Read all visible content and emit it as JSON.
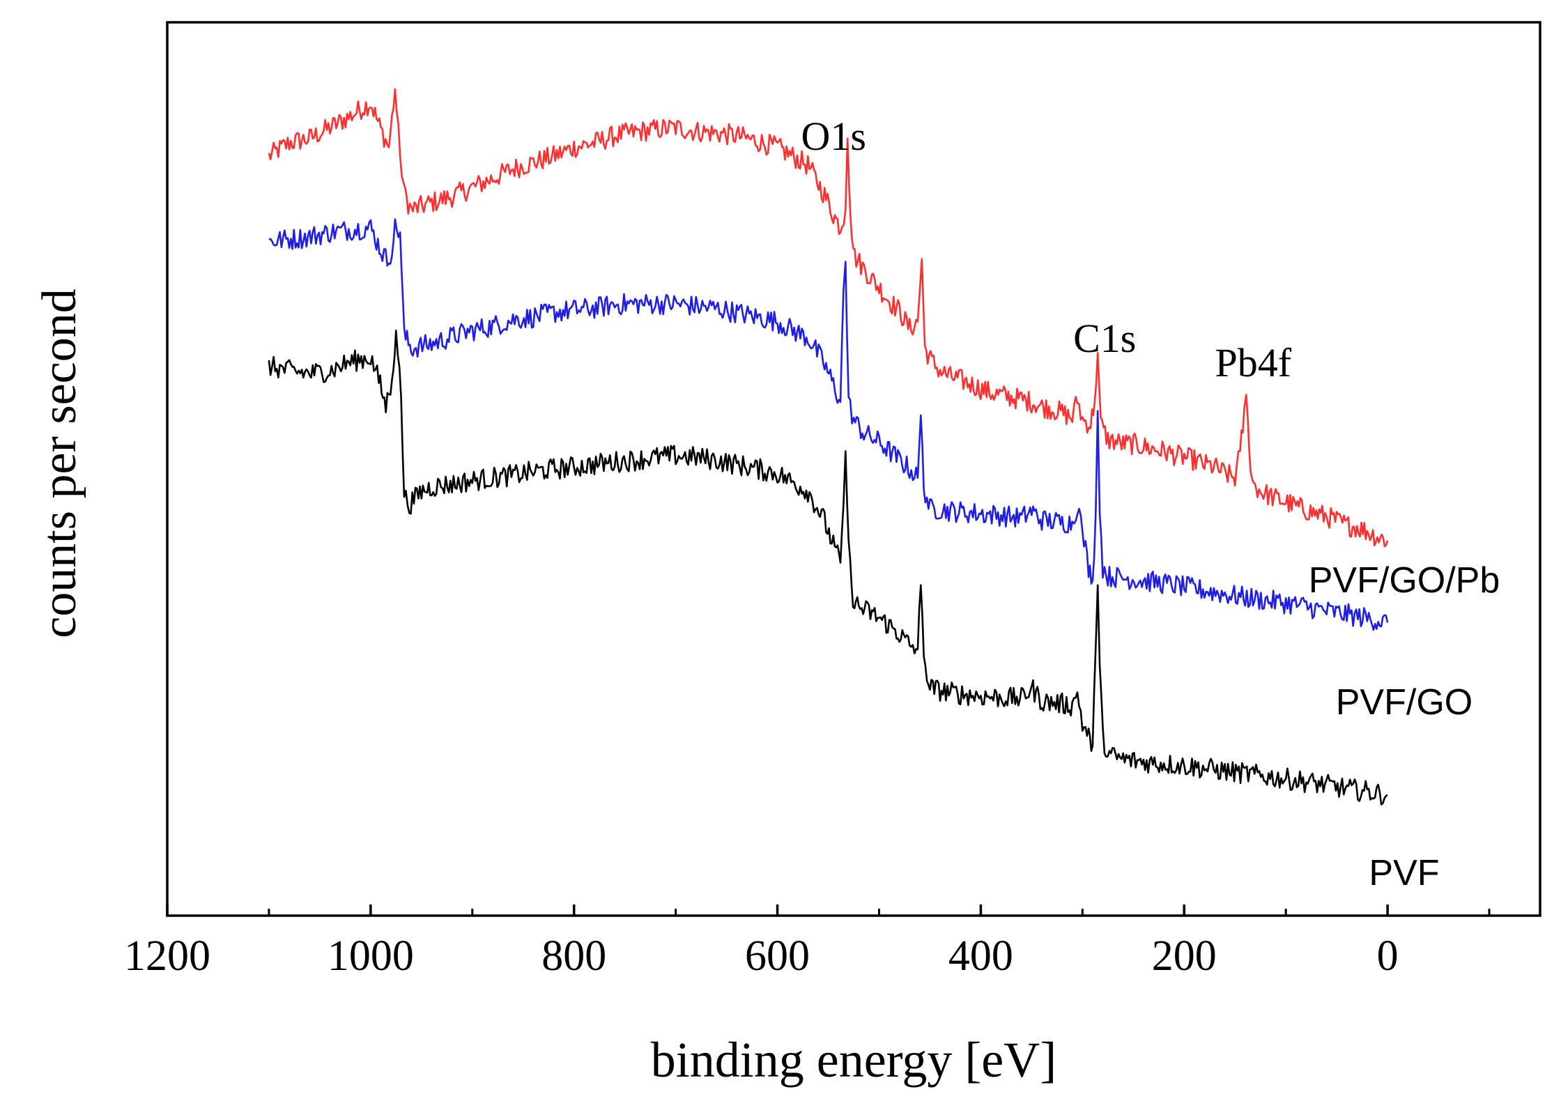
{
  "chart_data": {
    "type": "line",
    "title": "",
    "xlabel": "binding energy [eV]",
    "ylabel": "counts per second",
    "xlim": [
      1200,
      -150
    ],
    "x_reversed": true,
    "x_ticks": [
      1200,
      1000,
      800,
      600,
      400,
      200,
      0
    ],
    "ylim": [
      0,
      100
    ],
    "y_ticks_shown": false,
    "grid": false,
    "legend": "none",
    "peak_annotations": [
      {
        "label": "O1s",
        "x": 531
      },
      {
        "label": "C1s",
        "x": 285
      },
      {
        "label": "Pb4f",
        "x": 139
      }
    ],
    "series": [
      {
        "name": "PVF/GO/Pb",
        "color": "#ff3030",
        "points": [
          [
            1100,
            85
          ],
          [
            1080,
            86.5
          ],
          [
            1060,
            87
          ],
          [
            1040,
            88.2
          ],
          [
            1020,
            89.5
          ],
          [
            1000,
            91
          ],
          [
            990,
            88
          ],
          [
            982,
            86
          ],
          [
            976,
            92.5
          ],
          [
            971,
            85
          ],
          [
            966,
            80.5
          ],
          [
            960,
            79
          ],
          [
            940,
            79.8
          ],
          [
            920,
            80.5
          ],
          [
            900,
            81.5
          ],
          [
            880,
            82.5
          ],
          [
            860,
            83.6
          ],
          [
            840,
            84.3
          ],
          [
            820,
            85
          ],
          [
            800,
            86
          ],
          [
            780,
            86.5
          ],
          [
            760,
            87.3
          ],
          [
            740,
            87.7
          ],
          [
            720,
            88
          ],
          [
            700,
            88.2
          ],
          [
            680,
            87.8
          ],
          [
            660,
            87.6
          ],
          [
            640,
            87.3
          ],
          [
            620,
            86.7
          ],
          [
            600,
            86
          ],
          [
            585,
            85
          ],
          [
            570,
            84
          ],
          [
            555,
            81
          ],
          [
            545,
            78.5
          ],
          [
            538,
            77
          ],
          [
            533,
            79
          ],
          [
            531,
            87
          ],
          [
            528,
            78
          ],
          [
            524,
            73.8
          ],
          [
            510,
            71.7
          ],
          [
            500,
            70.3
          ],
          [
            490,
            68.8
          ],
          [
            480,
            67.7
          ],
          [
            470,
            65.7
          ],
          [
            462,
            66.5
          ],
          [
            458,
            73.5
          ],
          [
            455,
            63.5
          ],
          [
            448,
            62
          ],
          [
            440,
            61
          ],
          [
            430,
            60.3
          ],
          [
            420,
            60
          ],
          [
            410,
            59.5
          ],
          [
            400,
            59
          ],
          [
            390,
            58.5
          ],
          [
            380,
            58.3
          ],
          [
            370,
            58
          ],
          [
            360,
            57.8
          ],
          [
            350,
            57.5
          ],
          [
            340,
            57
          ],
          [
            330,
            56.7
          ],
          [
            320,
            56.3
          ],
          [
            310,
            55.7
          ],
          [
            305,
            57.8
          ],
          [
            300,
            55.5
          ],
          [
            292,
            55
          ],
          [
            288,
            57.5
          ],
          [
            285,
            63
          ],
          [
            282,
            55
          ],
          [
            275,
            53.3
          ],
          [
            260,
            52.8
          ],
          [
            250,
            52.8
          ],
          [
            240,
            52.5
          ],
          [
            230,
            52.2
          ],
          [
            220,
            52
          ],
          [
            210,
            51.6
          ],
          [
            200,
            51.3
          ],
          [
            190,
            51
          ],
          [
            180,
            50.5
          ],
          [
            170,
            50.2
          ],
          [
            160,
            49.5
          ],
          [
            150,
            49
          ],
          [
            145,
            52
          ],
          [
            141,
            56
          ],
          [
            139,
            58.3
          ],
          [
            136,
            52
          ],
          [
            132,
            48.3
          ],
          [
            125,
            47.5
          ],
          [
            110,
            46.7
          ],
          [
            100,
            46.3
          ],
          [
            90,
            45.8
          ],
          [
            80,
            45.4
          ],
          [
            70,
            45
          ],
          [
            60,
            44.7
          ],
          [
            50,
            44.2
          ],
          [
            40,
            43.7
          ],
          [
            30,
            43.5
          ],
          [
            20,
            43
          ],
          [
            10,
            42.4
          ],
          [
            0,
            42
          ]
        ]
      },
      {
        "name": "PVF/GO",
        "color": "#1e1ee6",
        "points": [
          [
            1100,
            75.5
          ],
          [
            1080,
            75.7
          ],
          [
            1060,
            76
          ],
          [
            1040,
            76.5
          ],
          [
            1020,
            76.8
          ],
          [
            1000,
            77
          ],
          [
            990,
            74.5
          ],
          [
            982,
            73
          ],
          [
            976,
            77
          ],
          [
            971,
            76.5
          ],
          [
            967,
            65
          ],
          [
            960,
            63.5
          ],
          [
            940,
            64
          ],
          [
            920,
            64.8
          ],
          [
            900,
            65.5
          ],
          [
            880,
            66
          ],
          [
            860,
            66.7
          ],
          [
            840,
            67
          ],
          [
            820,
            67.5
          ],
          [
            800,
            67.8
          ],
          [
            780,
            68
          ],
          [
            760,
            68.4
          ],
          [
            740,
            68.5
          ],
          [
            720,
            68.5
          ],
          [
            700,
            68.5
          ],
          [
            680,
            68.2
          ],
          [
            660,
            68
          ],
          [
            640,
            67.5
          ],
          [
            620,
            67
          ],
          [
            600,
            66.5
          ],
          [
            585,
            65.5
          ],
          [
            570,
            64.7
          ],
          [
            555,
            62
          ],
          [
            545,
            59.5
          ],
          [
            538,
            57.5
          ],
          [
            535,
            70
          ],
          [
            533,
            73.2
          ],
          [
            530,
            57.5
          ],
          [
            525,
            55.5
          ],
          [
            515,
            54
          ],
          [
            500,
            53
          ],
          [
            490,
            52
          ],
          [
            480,
            51
          ],
          [
            470,
            50
          ],
          [
            462,
            49
          ],
          [
            459,
            56
          ],
          [
            456,
            48
          ],
          [
            450,
            45.5
          ],
          [
            440,
            45.5
          ],
          [
            430,
            45.3
          ],
          [
            420,
            45.2
          ],
          [
            400,
            45
          ],
          [
            380,
            44.8
          ],
          [
            360,
            44.5
          ],
          [
            350,
            45.3
          ],
          [
            340,
            44.3
          ],
          [
            320,
            44
          ],
          [
            310,
            44
          ],
          [
            305,
            46
          ],
          [
            300,
            43
          ],
          [
            294,
            39
          ],
          [
            290,
            37.5
          ],
          [
            287,
            45
          ],
          [
            285,
            56.5
          ],
          [
            283,
            45
          ],
          [
            280,
            39
          ],
          [
            275,
            38
          ],
          [
            260,
            37.8
          ],
          [
            240,
            37.5
          ],
          [
            220,
            37.2
          ],
          [
            200,
            36.8
          ],
          [
            180,
            36.4
          ],
          [
            160,
            36
          ],
          [
            140,
            35.6
          ],
          [
            120,
            35.3
          ],
          [
            100,
            35
          ],
          [
            80,
            34.6
          ],
          [
            60,
            34.1
          ],
          [
            40,
            33.7
          ],
          [
            20,
            33.3
          ],
          [
            0,
            32.8
          ]
        ]
      },
      {
        "name": "PVF",
        "color": "#000000",
        "points": [
          [
            1100,
            61.5
          ],
          [
            1080,
            61
          ],
          [
            1060,
            60.7
          ],
          [
            1040,
            61
          ],
          [
            1020,
            62
          ],
          [
            1000,
            62.5
          ],
          [
            992,
            60
          ],
          [
            985,
            57
          ],
          [
            979,
            60
          ],
          [
            975,
            65.5
          ],
          [
            970,
            58
          ],
          [
            967,
            47
          ],
          [
            962,
            46
          ],
          [
            950,
            47.5
          ],
          [
            940,
            48
          ],
          [
            920,
            48.3
          ],
          [
            900,
            48.7
          ],
          [
            880,
            49
          ],
          [
            860,
            49.3
          ],
          [
            840,
            49.7
          ],
          [
            820,
            50
          ],
          [
            800,
            50.2
          ],
          [
            780,
            50.5
          ],
          [
            760,
            50.8
          ],
          [
            740,
            51
          ],
          [
            720,
            51.3
          ],
          [
            700,
            51.5
          ],
          [
            680,
            51.3
          ],
          [
            660,
            51
          ],
          [
            640,
            50.5
          ],
          [
            620,
            50
          ],
          [
            600,
            49.5
          ],
          [
            585,
            48.5
          ],
          [
            570,
            47.5
          ],
          [
            555,
            44.5
          ],
          [
            545,
            41.5
          ],
          [
            538,
            39.5
          ],
          [
            535,
            46
          ],
          [
            533,
            52
          ],
          [
            530,
            42
          ],
          [
            527,
            36
          ],
          [
            520,
            34.5
          ],
          [
            510,
            34
          ],
          [
            500,
            33.3
          ],
          [
            490,
            32.5
          ],
          [
            480,
            31.5
          ],
          [
            470,
            30.3
          ],
          [
            462,
            29.8
          ],
          [
            459,
            37
          ],
          [
            456,
            29
          ],
          [
            450,
            25.5
          ],
          [
            440,
            25.2
          ],
          [
            430,
            25
          ],
          [
            420,
            24.8
          ],
          [
            400,
            24.6
          ],
          [
            380,
            24.4
          ],
          [
            360,
            24.3
          ],
          [
            350,
            25.5
          ],
          [
            340,
            24
          ],
          [
            320,
            23.7
          ],
          [
            310,
            23.5
          ],
          [
            305,
            25
          ],
          [
            300,
            21.5
          ],
          [
            294,
            20
          ],
          [
            290,
            19
          ],
          [
            287,
            30
          ],
          [
            285,
            37
          ],
          [
            283,
            28
          ],
          [
            280,
            20
          ],
          [
            275,
            18
          ],
          [
            260,
            17.5
          ],
          [
            240,
            17.2
          ],
          [
            220,
            17
          ],
          [
            200,
            16.8
          ],
          [
            180,
            16.5
          ],
          [
            160,
            16.2
          ],
          [
            140,
            15.9
          ],
          [
            120,
            15.6
          ],
          [
            100,
            15.3
          ],
          [
            80,
            15
          ],
          [
            60,
            14.6
          ],
          [
            40,
            14.2
          ],
          [
            20,
            13.9
          ],
          [
            0,
            13.5
          ]
        ]
      }
    ]
  }
}
